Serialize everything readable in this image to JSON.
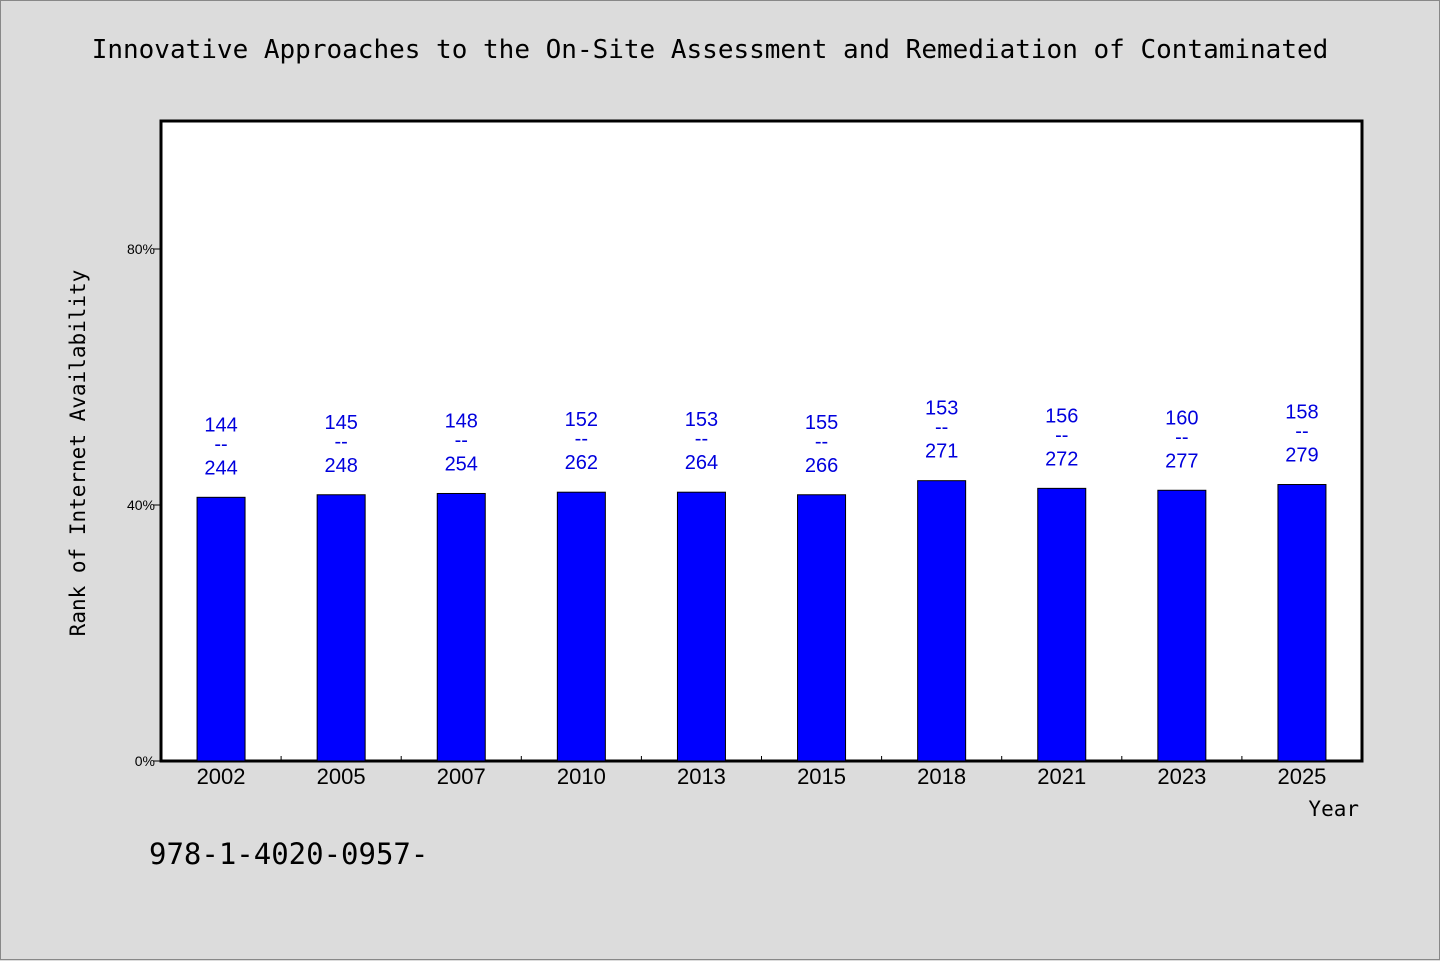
{
  "chart_data": {
    "type": "bar",
    "title": "Innovative Approaches to the On-Site Assessment and Remediation of Contaminated",
    "xlabel": "Year",
    "ylabel": "Rank of Internet Availability",
    "categories": [
      "2002",
      "2005",
      "2007",
      "2010",
      "2013",
      "2015",
      "2018",
      "2021",
      "2023",
      "2025"
    ],
    "values": [
      41.2,
      41.6,
      41.8,
      42.0,
      42.0,
      41.6,
      43.8,
      42.6,
      42.3,
      43.2
    ],
    "data_labels": [
      {
        "top": "144",
        "sep": "--",
        "bottom": "244"
      },
      {
        "top": "145",
        "sep": "--",
        "bottom": "248"
      },
      {
        "top": "148",
        "sep": "--",
        "bottom": "254"
      },
      {
        "top": "152",
        "sep": "--",
        "bottom": "262"
      },
      {
        "top": "153",
        "sep": "--",
        "bottom": "264"
      },
      {
        "top": "155",
        "sep": "--",
        "bottom": "266"
      },
      {
        "top": "153",
        "sep": "--",
        "bottom": "271"
      },
      {
        "top": "156",
        "sep": "--",
        "bottom": "272"
      },
      {
        "top": "160",
        "sep": "--",
        "bottom": "277"
      },
      {
        "top": "158",
        "sep": "--",
        "bottom": "279"
      }
    ],
    "ylim": [
      0,
      100
    ],
    "yticks": [
      0,
      40,
      80
    ],
    "ytick_labels": [
      "0%",
      "40%",
      "80%"
    ],
    "grid": false,
    "colors": {
      "bar": "#0000ff",
      "bar_edge": "#000000",
      "label": "#0000dd",
      "plot_bg": "#ffffff",
      "page_bg": "#dcdcdc"
    }
  },
  "footnote": "978-1-4020-0957-"
}
